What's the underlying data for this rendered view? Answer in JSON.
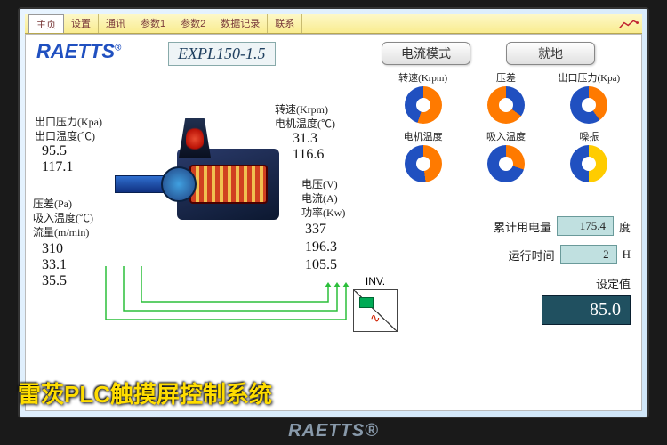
{
  "tabs": [
    "主页",
    "设置",
    "通讯",
    "参数1",
    "参数2",
    "数据记录",
    "联系"
  ],
  "brand": "RAETTS",
  "model": "EXPL150-1.5",
  "mode_buttons": {
    "b1": "电流模式",
    "b2": "就地"
  },
  "left_params": {
    "p1_lbl": "出口压力(Kpa)",
    "p2_lbl": "出口温度(℃)",
    "p1_val": "95.5",
    "p2_val": "117.1",
    "p3_lbl": "压差(Pa)",
    "p4_lbl": "吸入温度(℃)",
    "p5_lbl": "流量(m/min)",
    "p3_val": "310",
    "p4_val": "33.1",
    "p5_val": "35.5"
  },
  "mid_params": {
    "p1_lbl": "转速(Krpm)",
    "p2_lbl": "电机温度(℃)",
    "p1_val": "31.3",
    "p2_val": "116.6",
    "p3_lbl": "电压(V)",
    "p4_lbl": "电流(A)",
    "p5_lbl": "功率(Kw)",
    "p3_val": "337",
    "p4_val": "196.3",
    "p5_val": "105.5"
  },
  "gauges": {
    "row1": [
      {
        "label": "转速(Krpm)",
        "pct": 55,
        "c1": "#ff7a00",
        "c2": "#2050c0"
      },
      {
        "label": "压差",
        "pct": 35,
        "c1": "#2050c0",
        "c2": "#ff7a00"
      },
      {
        "label": "出口压力(Kpa)",
        "pct": 40,
        "c1": "#ff7a00",
        "c2": "#2050c0"
      }
    ],
    "row2": [
      {
        "label": "电机温度",
        "pct": 48,
        "c1": "#ff7a00",
        "c2": "#2050c0"
      },
      {
        "label": "吸入温度",
        "pct": 30,
        "c1": "#ff7a00",
        "c2": "#2050c0"
      },
      {
        "label": "噪振",
        "pct": 50,
        "c1": "#ffcc00",
        "c2": "#2050c0"
      }
    ]
  },
  "stats": {
    "energy_lbl": "累计用电量",
    "energy_val": "175.4",
    "energy_unit": "度",
    "runtime_lbl": "运行时间",
    "runtime_val": "2",
    "runtime_unit": "H",
    "setpoint_lbl": "设定值",
    "setpoint_val": "85.0"
  },
  "inv_label": "INV.",
  "caption": "雷茨PLC触摸屏控制系统",
  "bottom_brand": "RAETTS®",
  "colors": {
    "brand": "#2050c0",
    "tab_bg": "#f9ec8f",
    "flow_line": "#2bbf3a"
  }
}
